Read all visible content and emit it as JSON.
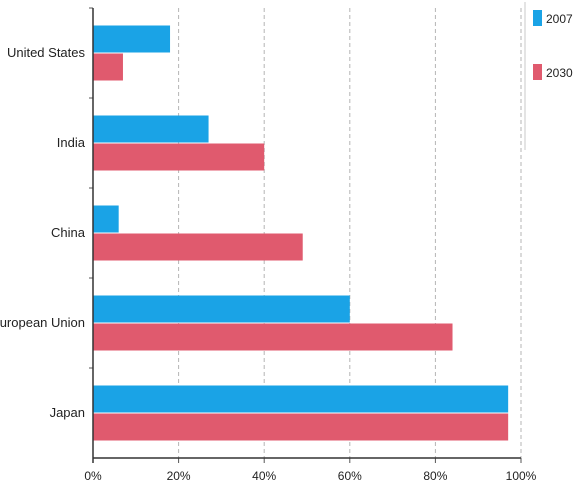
{
  "chart_data": {
    "type": "bar",
    "orientation": "horizontal",
    "categories": [
      "United States",
      "India",
      "China",
      "European Union",
      "Japan"
    ],
    "series": [
      {
        "name": "2007",
        "color": "#1aa3e6",
        "values": [
          18,
          27,
          6,
          60,
          97
        ]
      },
      {
        "name": "2030",
        "color": "#e05a6e",
        "values": [
          7,
          40,
          49,
          84,
          97
        ]
      }
    ],
    "x_ticks": [
      "0%",
      "20%",
      "40%",
      "60%",
      "80%",
      "100%"
    ],
    "xlim": [
      0,
      100
    ],
    "grid": "vertical-dashed",
    "legend_position": "top-right"
  }
}
